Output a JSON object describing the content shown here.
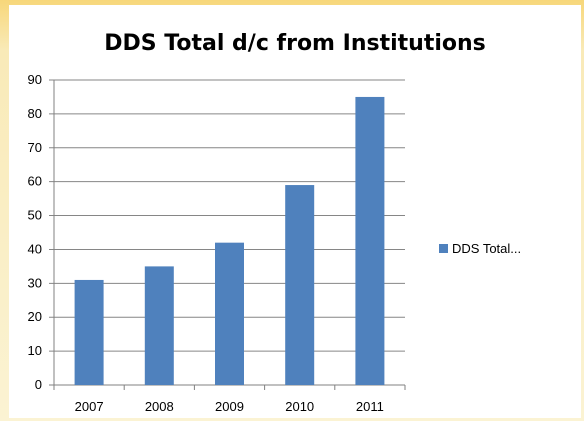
{
  "chart_data": {
    "type": "bar",
    "title": "DDS Total d/c from Institutions",
    "categories": [
      "2007",
      "2008",
      "2009",
      "2010",
      "2011"
    ],
    "series": [
      {
        "name": "DDS Total...",
        "values": [
          31,
          35,
          42,
          59,
          85
        ],
        "color": "#4f81bd"
      }
    ],
    "ylim": [
      0,
      90
    ],
    "yticks": [
      0,
      10,
      20,
      30,
      40,
      50,
      60,
      70,
      80,
      90
    ],
    "grid": true,
    "legend": "right"
  }
}
